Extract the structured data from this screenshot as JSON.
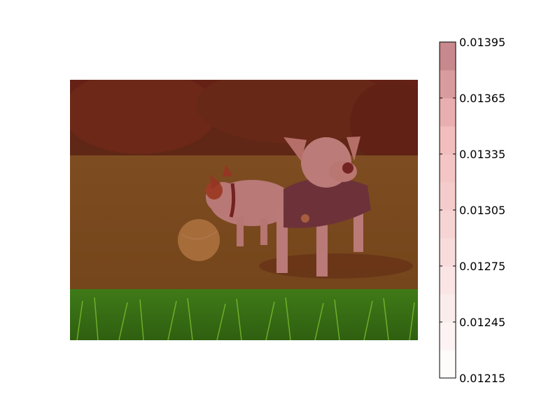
{
  "chart_data": {
    "type": "heatmap",
    "title": "",
    "xlabel": "",
    "ylabel": "",
    "image": {
      "description_icon": "photo-two-dogs-with-ball-on-grass",
      "rows": 1,
      "cols": 1,
      "overlay_fraction_of_height": 0.8,
      "overlay_color": "#8b1a1a",
      "overlay_value": 0.01395
    },
    "colorbar": {
      "vmin": 0.01215,
      "vmax": 0.01395,
      "levels": [
        0.01215,
        0.0123,
        0.01245,
        0.0126,
        0.01275,
        0.0129,
        0.01305,
        0.0132,
        0.01335,
        0.0135,
        0.01365,
        0.0138,
        0.01395
      ],
      "ticks": [
        0.01215,
        0.01245,
        0.01275,
        0.01305,
        0.01335,
        0.01365,
        0.01395
      ],
      "tick_labels": [
        "0.01215",
        "0.01245",
        "0.01275",
        "0.01305",
        "0.01335",
        "0.01365",
        "0.01395"
      ],
      "colormap": "Reds",
      "colors": {
        "low": "#ffffff",
        "high": "#bf7f84"
      }
    }
  }
}
